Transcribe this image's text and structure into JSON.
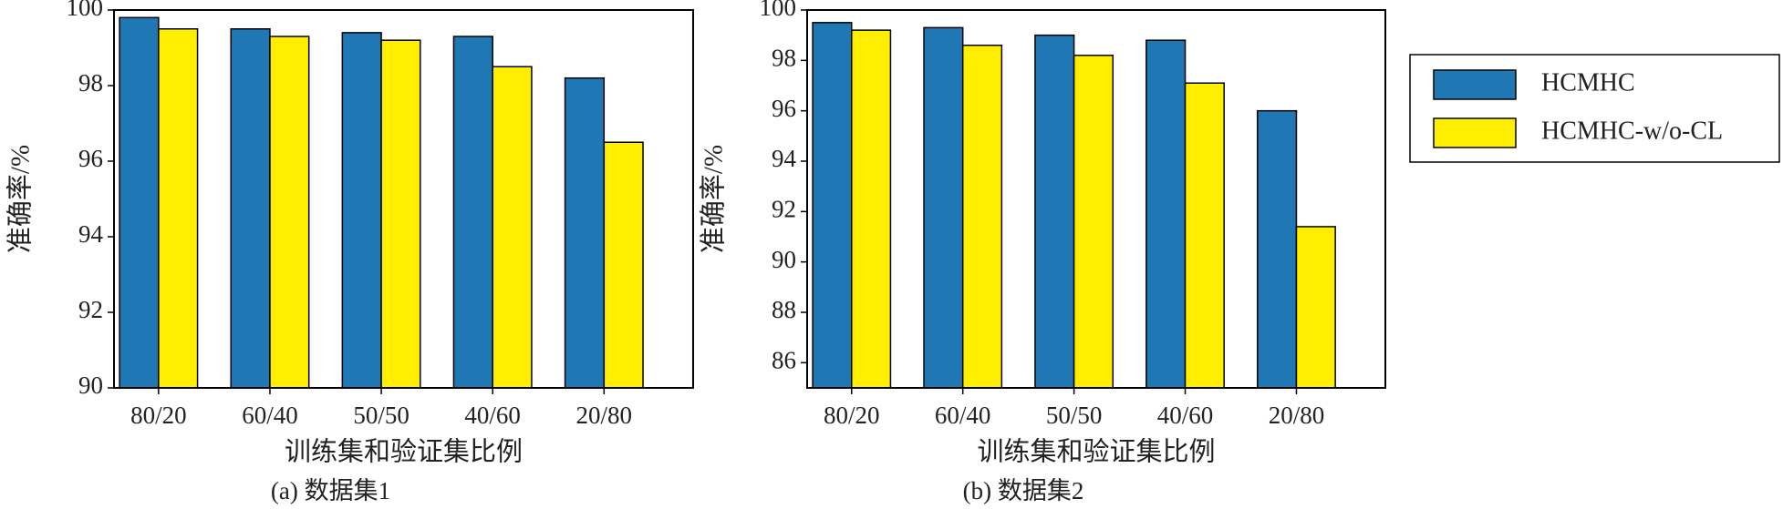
{
  "chart_data": [
    {
      "type": "bar",
      "caption": "(a) 数据集1",
      "x_label": "训练集和验证集比例",
      "y_label": "准确率/%",
      "categories": [
        "80/20",
        "60/40",
        "50/50",
        "40/60",
        "20/80"
      ],
      "series": [
        {
          "name": "HCMHC",
          "color": "#1f77b4",
          "values": [
            99.8,
            99.5,
            99.4,
            99.3,
            98.2
          ]
        },
        {
          "name": "HCMHC-w/o-CL",
          "color": "#ffee00",
          "values": [
            99.5,
            99.3,
            99.2,
            98.5,
            96.5
          ]
        }
      ],
      "ylim": [
        90,
        100
      ],
      "yticks": [
        90,
        92,
        94,
        96,
        98,
        100
      ]
    },
    {
      "type": "bar",
      "caption": "(b) 数据集2",
      "x_label": "训练集和验证集比例",
      "y_label": "准确率/%",
      "categories": [
        "80/20",
        "60/40",
        "50/50",
        "40/60",
        "20/80"
      ],
      "series": [
        {
          "name": "HCMHC",
          "color": "#1f77b4",
          "values": [
            99.5,
            99.3,
            99.0,
            98.8,
            96.0
          ]
        },
        {
          "name": "HCMHC-w/o-CL",
          "color": "#ffee00",
          "values": [
            99.2,
            98.6,
            98.2,
            97.1,
            91.4
          ]
        }
      ],
      "ylim": [
        85,
        100
      ],
      "yticks": [
        86,
        88,
        90,
        92,
        94,
        96,
        98,
        100
      ]
    }
  ]
}
